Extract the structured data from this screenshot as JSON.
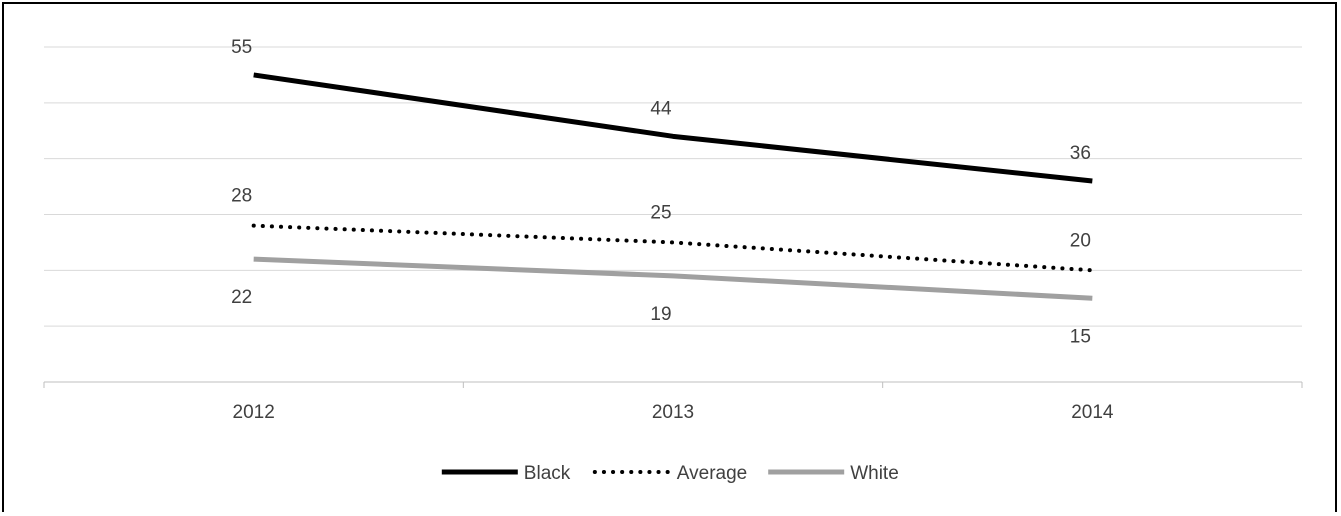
{
  "chart_data": {
    "type": "line",
    "title": "",
    "xlabel": "",
    "ylabel": "",
    "categories": [
      "2012",
      "2013",
      "2014"
    ],
    "ylim": [
      0,
      60
    ],
    "grid": true,
    "legend_position": "bottom",
    "series": [
      {
        "name": "Black",
        "values": [
          55,
          44,
          36
        ],
        "labels": [
          "55",
          "44",
          "36"
        ],
        "color": "#000000",
        "style": "solid"
      },
      {
        "name": "Average",
        "values": [
          28,
          25,
          20
        ],
        "labels": [
          "28",
          "25",
          "20"
        ],
        "color": "#000000",
        "style": "dotted"
      },
      {
        "name": "White",
        "values": [
          22,
          19,
          15
        ],
        "labels": [
          "22",
          "19",
          "15"
        ],
        "color": "#a0a0a0",
        "style": "solid"
      }
    ]
  }
}
